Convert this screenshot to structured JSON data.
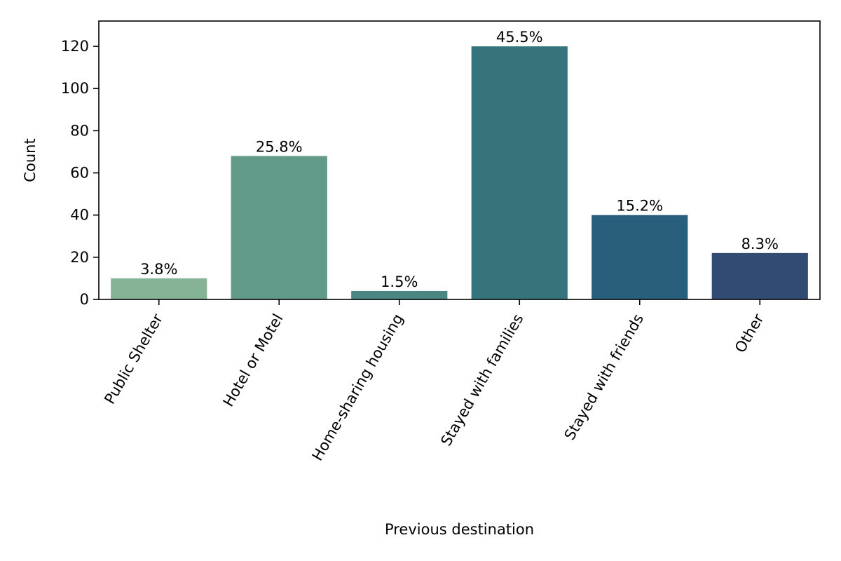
{
  "chart_data": {
    "type": "bar",
    "categories": [
      "Public Shelter",
      "Hotel or Motel",
      "Home-sharing housing",
      "Stayed with families",
      "Stayed with friends",
      "Other"
    ],
    "values": [
      10,
      68,
      4,
      120,
      40,
      22
    ],
    "data_labels": [
      "3.8%",
      "25.8%",
      "1.5%",
      "45.5%",
      "15.2%",
      "8.3%"
    ],
    "colors": [
      "#86b393",
      "#629a8a",
      "#4a8783",
      "#37737b",
      "#2a5f7c",
      "#324b72"
    ],
    "xlabel": "Previous destination",
    "ylabel": "Count",
    "ylim": [
      0,
      132
    ],
    "yticks": [
      0,
      20,
      40,
      60,
      80,
      100,
      120
    ],
    "grid": false,
    "legend": "none"
  }
}
